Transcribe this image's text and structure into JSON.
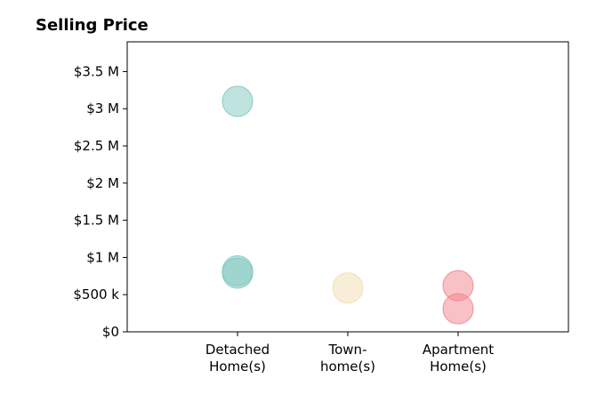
{
  "chart_data": {
    "type": "scatter",
    "title": "Selling Price",
    "xlabel": "",
    "ylabel": "",
    "categories": [
      [
        "Detached",
        "Home(s)"
      ],
      [
        "Town-",
        "home(s)"
      ],
      [
        "Apartment",
        "Home(s)"
      ]
    ],
    "xlim": [
      -1,
      3
    ],
    "ylim": [
      0,
      3900000
    ],
    "yticks": [
      0,
      500000,
      1000000,
      1500000,
      2000000,
      2500000,
      3000000,
      3500000
    ],
    "ytick_labels": [
      "$0",
      "$500 k",
      "$1 M",
      "$1.5 M",
      "$2 M",
      "$2.5 M",
      "$3 M",
      "$3.5 M"
    ],
    "grid": false,
    "series": [
      {
        "category_index": 0,
        "color": "#7fc8c0",
        "values": [
          3100000,
          820000,
          790000
        ]
      },
      {
        "category_index": 1,
        "color": "#f2ddb0",
        "values": [
          590000
        ]
      },
      {
        "category_index": 2,
        "color": "#f2848e",
        "values": [
          620000,
          310000
        ]
      }
    ],
    "marker_alpha": 0.5
  }
}
